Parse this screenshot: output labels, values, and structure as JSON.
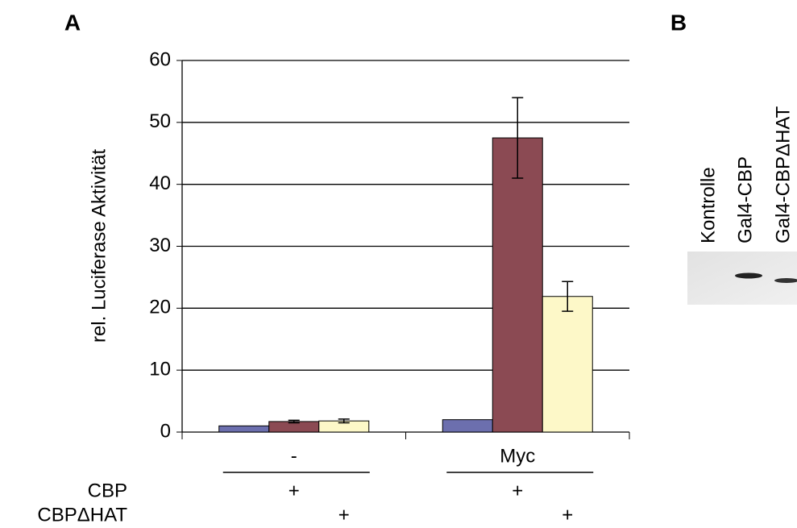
{
  "chart_data": {
    "type": "bar",
    "panel": "A",
    "ylabel": "rel. Luciferase Aktivität",
    "categories": [
      "-",
      "Myc"
    ],
    "series": [
      {
        "color": "#6c6fae",
        "values": [
          1,
          2
        ]
      },
      {
        "name": "CBP",
        "color": "#8b4a53",
        "values": [
          1.7,
          47.5
        ],
        "errors": [
          0.2,
          6.5
        ]
      },
      {
        "name": "CBPΔHAT",
        "color": "#fdf8c8",
        "values": [
          1.8,
          21.9
        ],
        "errors": [
          0.3,
          2.4
        ]
      }
    ],
    "sign": "+",
    "ylim": [
      0,
      60
    ],
    "yticks": [
      0,
      10,
      20,
      30,
      40,
      50,
      60
    ],
    "grid": true
  },
  "blot": {
    "panel": "B",
    "lanes": [
      "Kontrolle",
      "Gal4-CBP",
      "Gal4-CBPΔHAT"
    ]
  }
}
